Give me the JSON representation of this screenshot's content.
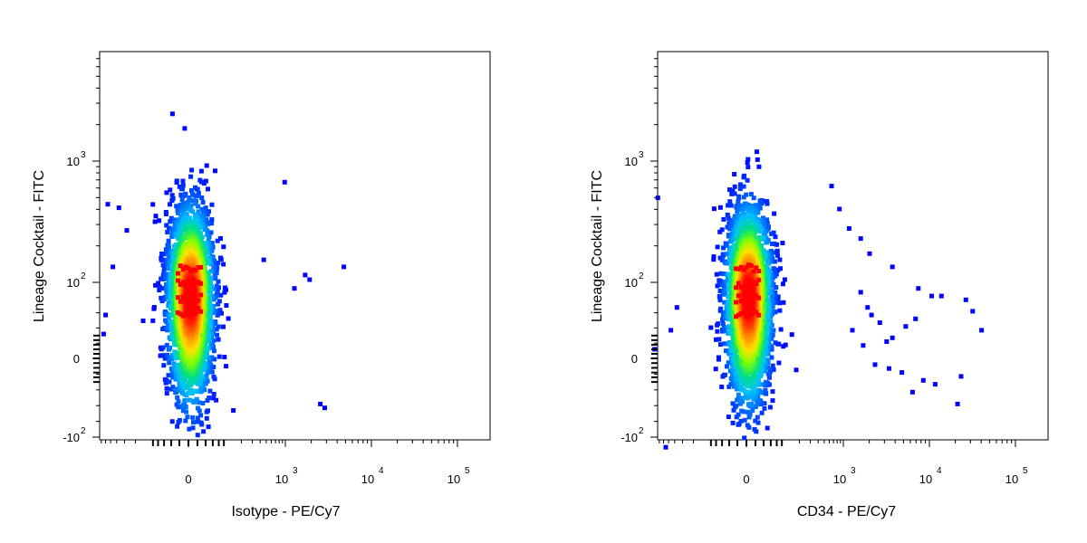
{
  "colors": {
    "axis": "#000000",
    "background": "#ffffff",
    "density_scale": [
      "#0000ff",
      "#0060ff",
      "#00c0ff",
      "#00e080",
      "#80ff00",
      "#ffe000",
      "#ff8000",
      "#ff0000"
    ]
  },
  "chart_data": [
    {
      "type": "scatter",
      "title": "",
      "xlabel": "Isotype - PE/Cy7",
      "ylabel": "Lineage Cocktail - FITC",
      "xscale": "biexponential",
      "yscale": "biexponential",
      "x_ticks": [
        {
          "value": 0,
          "base": "0",
          "exp": ""
        },
        {
          "value": 1000,
          "base": "10",
          "exp": "3"
        },
        {
          "value": 10000,
          "base": "10",
          "exp": "4"
        },
        {
          "value": 100000,
          "base": "10",
          "exp": "5"
        }
      ],
      "y_ticks": [
        {
          "value": -100,
          "base": "-10",
          "exp": "2"
        },
        {
          "value": 0,
          "base": "0",
          "exp": ""
        },
        {
          "value": 100,
          "base": "10",
          "exp": "2"
        },
        {
          "value": 1000,
          "base": "10",
          "exp": "3"
        }
      ],
      "population": {
        "x_center": 0,
        "x_spread": 40,
        "y_center": 85,
        "y_spread": 1.3,
        "n": 2600
      },
      "outliers": [
        [
          4500,
          140
        ],
        [
          2400,
          -55
        ],
        [
          2700,
          -60
        ],
        [
          1800,
          110
        ],
        [
          1600,
          120
        ],
        [
          1200,
          95
        ],
        [
          -600,
          460
        ],
        [
          -400,
          430
        ],
        [
          -700,
          35
        ],
        [
          -650,
          60
        ],
        [
          -300,
          280
        ],
        [
          900,
          700
        ],
        [
          420,
          160
        ],
        [
          -500,
          140
        ]
      ]
    },
    {
      "type": "scatter",
      "title": "",
      "xlabel": "CD34 - PE/Cy7",
      "ylabel": "Lineage Cocktail - FITC",
      "xscale": "biexponential",
      "yscale": "biexponential",
      "x_ticks": [
        {
          "value": 0,
          "base": "0",
          "exp": ""
        },
        {
          "value": 1000,
          "base": "10",
          "exp": "3"
        },
        {
          "value": 10000,
          "base": "10",
          "exp": "4"
        },
        {
          "value": 100000,
          "base": "10",
          "exp": "5"
        }
      ],
      "y_ticks": [
        {
          "value": -100,
          "base": "-10",
          "exp": "2"
        },
        {
          "value": 0,
          "base": "0",
          "exp": ""
        },
        {
          "value": 100,
          "base": "10",
          "exp": "2"
        },
        {
          "value": 1000,
          "base": "10",
          "exp": "3"
        }
      ],
      "population": {
        "x_center": 0,
        "x_spread": 40,
        "y_center": 85,
        "y_spread": 1.35,
        "n": 2800
      },
      "outliers": [
        [
          38000,
          40
        ],
        [
          30000,
          65
        ],
        [
          25000,
          80
        ],
        [
          13000,
          85
        ],
        [
          10000,
          85
        ],
        [
          7000,
          95
        ],
        [
          6500,
          55
        ],
        [
          5000,
          45
        ],
        [
          3500,
          30
        ],
        [
          3000,
          25
        ],
        [
          2500,
          50
        ],
        [
          2000,
          60
        ],
        [
          1800,
          70
        ],
        [
          1500,
          90
        ],
        [
          22000,
          -20
        ],
        [
          20000,
          -55
        ],
        [
          11000,
          -30
        ],
        [
          8000,
          -25
        ],
        [
          6000,
          -40
        ],
        [
          4500,
          -15
        ],
        [
          3200,
          -10
        ],
        [
          2200,
          -5
        ],
        [
          1600,
          20
        ],
        [
          1200,
          40
        ],
        [
          3500,
          140
        ],
        [
          1900,
          180
        ],
        [
          1500,
          240
        ],
        [
          1100,
          290
        ],
        [
          800,
          420
        ],
        [
          600,
          650
        ],
        [
          -800,
          520
        ],
        [
          -900,
          15
        ],
        [
          -600,
          -110
        ],
        [
          -500,
          40
        ],
        [
          -400,
          70
        ]
      ]
    }
  ]
}
